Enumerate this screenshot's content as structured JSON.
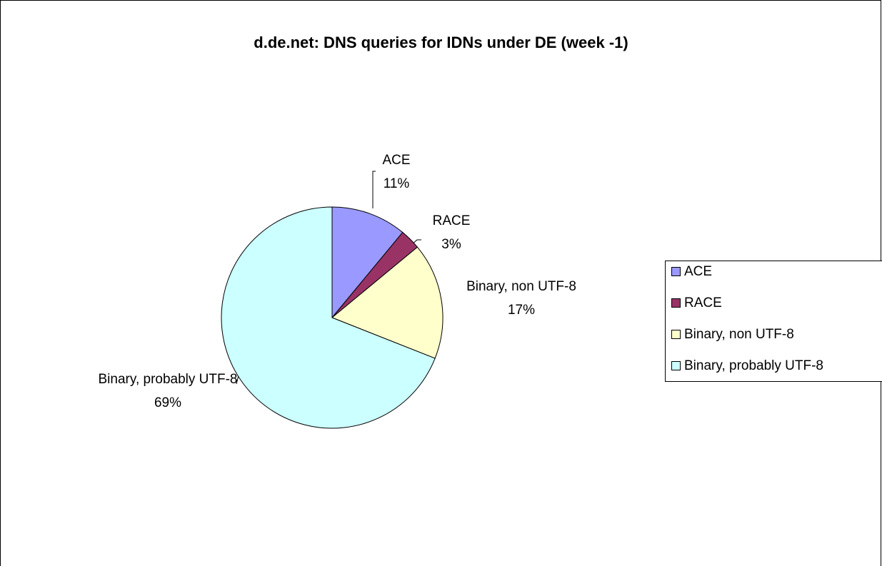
{
  "chart_data": {
    "type": "pie",
    "title": "d.de.net: DNS queries for IDNs under DE (week -1)",
    "categories": [
      "ACE",
      "RACE",
      "Binary, non UTF-8",
      "Binary, probably UTF-8"
    ],
    "values": [
      11,
      3,
      17,
      69
    ],
    "value_labels": [
      "11%",
      "3%",
      "17%",
      "69%"
    ],
    "colors": [
      "#9999ff",
      "#993366",
      "#ffffcc",
      "#ccffff"
    ],
    "legend": "right"
  }
}
